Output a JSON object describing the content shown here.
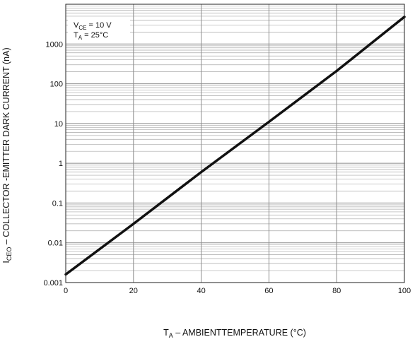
{
  "chart_data": {
    "type": "line",
    "xlabel": {
      "main": "T",
      "sub": "A",
      "rest": " – AMBIENTTEMPERATURE (°C)"
    },
    "ylabel": {
      "main": "I",
      "sub": "CEO",
      "rest": " – COLLECTOR -EMITTER DARK CURRENT (nA)"
    },
    "xlim": [
      0,
      100
    ],
    "ylim": [
      0.001,
      10000
    ],
    "yscale": "log",
    "x_ticks": [
      0,
      20,
      40,
      60,
      80,
      100
    ],
    "x_tick_labels": [
      "0",
      "20",
      "40",
      "60",
      "80",
      "100"
    ],
    "y_ticks": [
      0.001,
      0.01,
      0.1,
      1,
      10,
      100,
      1000
    ],
    "y_tick_labels": [
      "0.001",
      "0.01",
      "0.1",
      "1",
      "10",
      "100",
      "1000"
    ],
    "grid": true,
    "annotations": [
      {
        "main": "V",
        "sub": "CE",
        "rest": " = 10 V"
      },
      {
        "main": "T",
        "sub": "A",
        "rest": " = 25°C"
      }
    ],
    "series": [
      {
        "x": [
          0,
          20,
          40,
          60,
          80,
          100
        ],
        "values": [
          0.0016,
          0.03,
          0.6,
          11,
          210,
          4800
        ]
      }
    ]
  }
}
